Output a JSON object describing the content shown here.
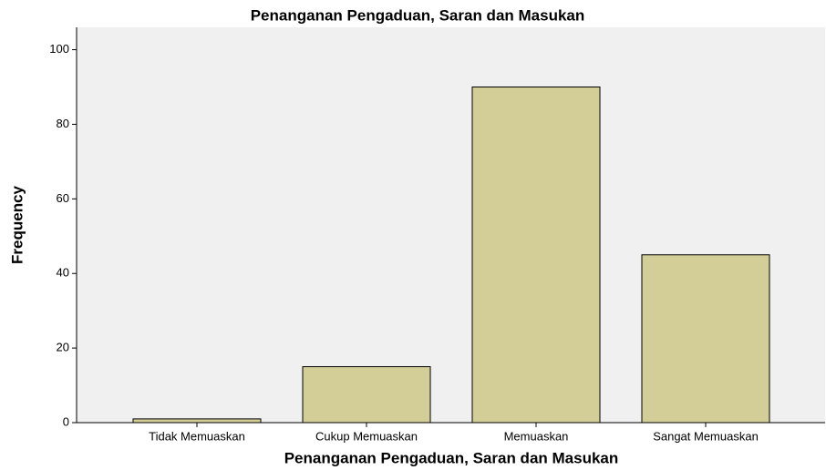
{
  "chart_data": {
    "type": "bar",
    "title": "Penanganan Pengaduan, Saran dan Masukan",
    "x_label": "Penanganan Pengaduan, Saran dan Masukan",
    "y_label": "Frequency",
    "categories": [
      "Tidak Memuaskan",
      "Cukup Memuaskan",
      "Memuaskan",
      "Sangat Memuaskan"
    ],
    "values": [
      1,
      15,
      90,
      45
    ],
    "color": "#d3ce97",
    "ylim": [
      0,
      106
    ],
    "yticks": [
      0,
      20,
      40,
      60,
      80,
      100
    ],
    "grid": false
  }
}
